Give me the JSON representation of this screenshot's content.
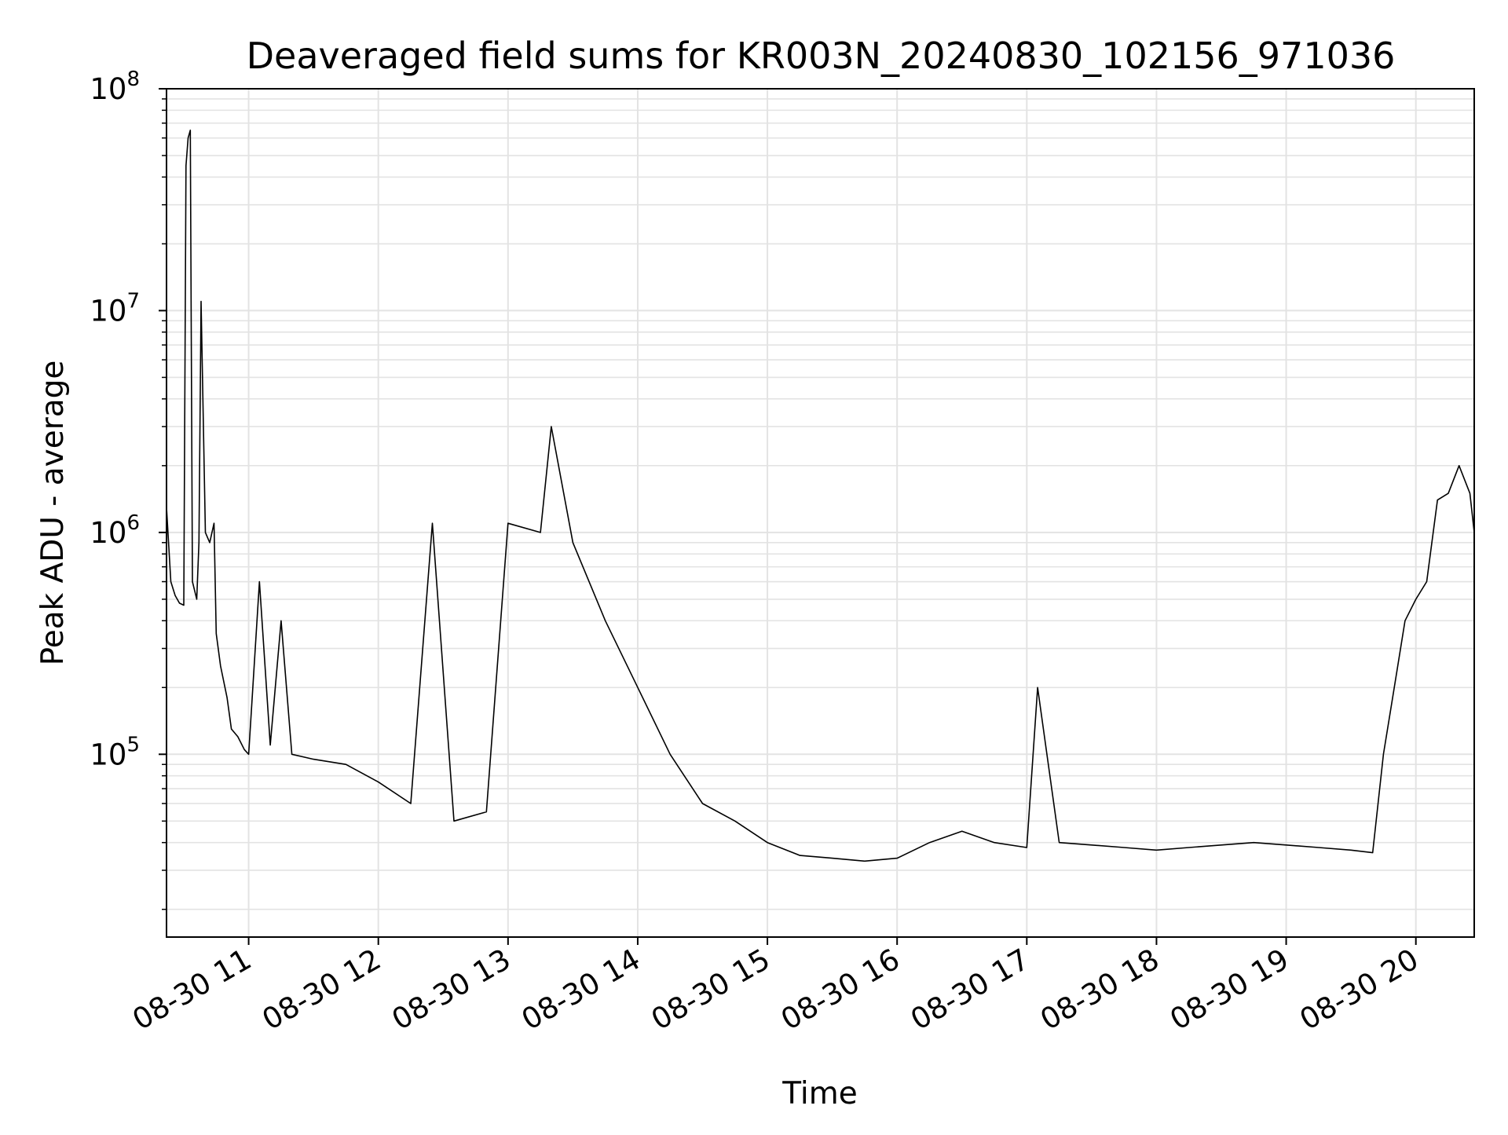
{
  "chart_data": {
    "type": "line",
    "title": "Deaveraged field sums for KR003N_20240830_102156_971036",
    "xlabel": "Time",
    "ylabel": "Peak ADU - average",
    "xlim": [
      "08-30 10:22",
      "08-30 20:27"
    ],
    "ylim": [
      15000,
      100000000
    ],
    "y_scale": "log",
    "grid": true,
    "x_ticks": [
      "08-30 11",
      "08-30 12",
      "08-30 13",
      "08-30 14",
      "08-30 15",
      "08-30 16",
      "08-30 17",
      "08-30 18",
      "08-30 19",
      "08-30 20"
    ],
    "y_ticks": [
      {
        "base": "10",
        "exp": "5",
        "value": 100000
      },
      {
        "base": "10",
        "exp": "6",
        "value": 1000000
      },
      {
        "base": "10",
        "exp": "7",
        "value": 10000000
      },
      {
        "base": "10",
        "exp": "8",
        "value": 100000000
      }
    ],
    "line_color": "#000000",
    "series": [
      {
        "x": [
          "08-30 10:22",
          "08-30 10:24",
          "08-30 10:26",
          "08-30 10:28",
          "08-30 10:30",
          "08-30 10:31",
          "08-30 10:32",
          "08-30 10:33",
          "08-30 10:34",
          "08-30 10:36",
          "08-30 10:37",
          "08-30 10:38",
          "08-30 10:40",
          "08-30 10:42",
          "08-30 10:44",
          "08-30 10:45",
          "08-30 10:47",
          "08-30 10:50",
          "08-30 10:52",
          "08-30 10:55",
          "08-30 10:58",
          "08-30 11:00",
          "08-30 11:05",
          "08-30 11:10",
          "08-30 11:15",
          "08-30 11:20",
          "08-30 11:30",
          "08-30 11:45",
          "08-30 12:00",
          "08-30 12:15",
          "08-30 12:25",
          "08-30 12:35",
          "08-30 12:50",
          "08-30 13:00",
          "08-30 13:15",
          "08-30 13:20",
          "08-30 13:30",
          "08-30 13:45",
          "08-30 14:00",
          "08-30 14:15",
          "08-30 14:30",
          "08-30 14:45",
          "08-30 15:00",
          "08-30 15:15",
          "08-30 15:30",
          "08-30 15:45",
          "08-30 16:00",
          "08-30 16:15",
          "08-30 16:30",
          "08-30 16:45",
          "08-30 17:00",
          "08-30 17:05",
          "08-30 17:15",
          "08-30 17:30",
          "08-30 17:45",
          "08-30 18:00",
          "08-30 18:15",
          "08-30 18:30",
          "08-30 18:45",
          "08-30 19:00",
          "08-30 19:15",
          "08-30 19:30",
          "08-30 19:40",
          "08-30 19:45",
          "08-30 19:50",
          "08-30 19:55",
          "08-30 20:00",
          "08-30 20:05",
          "08-30 20:10",
          "08-30 20:15",
          "08-30 20:20",
          "08-30 20:25",
          "08-30 20:27"
        ],
        "y": [
          1300000,
          600000,
          520000,
          480000,
          470000,
          45000000,
          60000000,
          65000000,
          600000,
          500000,
          900000,
          11000000,
          1000000,
          900000,
          1100000,
          350000,
          250000,
          180000,
          130000,
          120000,
          105000,
          100000,
          600000,
          110000,
          400000,
          100000,
          95000,
          90000,
          75000,
          60000,
          1100000,
          50000,
          55000,
          1100000,
          1000000,
          3000000,
          900000,
          400000,
          200000,
          100000,
          60000,
          50000,
          40000,
          35000,
          34000,
          33000,
          34000,
          40000,
          45000,
          40000,
          38000,
          200000,
          40000,
          39000,
          38000,
          37000,
          38000,
          39000,
          40000,
          39000,
          38000,
          37000,
          36000,
          100000,
          200000,
          400000,
          500000,
          600000,
          1400000,
          1500000,
          2000000,
          1500000,
          1000000
        ]
      }
    ]
  }
}
